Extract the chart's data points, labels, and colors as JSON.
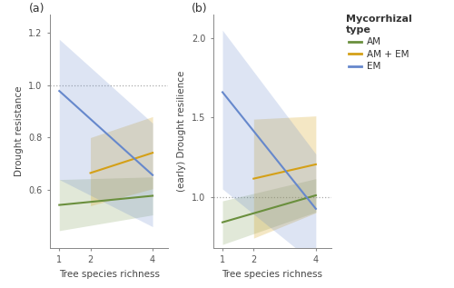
{
  "panel_a": {
    "title": "(a)",
    "xlabel": "Tree species richness",
    "ylabel": "Drought resistance",
    "xlim": [
      0.7,
      4.5
    ],
    "ylim": [
      0.38,
      1.27
    ],
    "yticks": [
      0.6,
      0.8,
      1.0,
      1.2
    ],
    "xticks": [
      1,
      2,
      4
    ],
    "hline": 1.0,
    "lines": {
      "AM": {
        "x": [
          1,
          4
        ],
        "y": [
          0.543,
          0.578
        ],
        "ci_upper": [
          0.64,
          0.65
        ],
        "ci_lower": [
          0.445,
          0.505
        ],
        "color": "#6a8f3d",
        "alpha_fill": 0.2
      },
      "AM+EM": {
        "x": [
          2,
          4
        ],
        "y": [
          0.665,
          0.742
        ],
        "ci_upper": [
          0.8,
          0.88
        ],
        "ci_lower": [
          0.54,
          0.605
        ],
        "color": "#d4a017",
        "alpha_fill": 0.25
      },
      "EM": {
        "x": [
          1,
          4
        ],
        "y": [
          0.978,
          0.657
        ],
        "ci_upper": [
          1.175,
          0.855
        ],
        "ci_lower": [
          0.64,
          0.46
        ],
        "color": "#6688cc",
        "alpha_fill": 0.22
      }
    }
  },
  "panel_b": {
    "title": "(b)",
    "xlabel": "Tree species richness",
    "ylabel": "(early) Drought resilience",
    "xlim": [
      0.7,
      4.5
    ],
    "ylim": [
      0.68,
      2.15
    ],
    "yticks": [
      1.0,
      1.5,
      2.0
    ],
    "xticks": [
      1,
      2,
      4
    ],
    "hline": 1.0,
    "lines": {
      "AM": {
        "x": [
          1,
          4
        ],
        "y": [
          0.84,
          1.01
        ],
        "ci_upper": [
          0.975,
          1.115
        ],
        "ci_lower": [
          0.7,
          0.905
        ],
        "color": "#6a8f3d",
        "alpha_fill": 0.2
      },
      "AM+EM": {
        "x": [
          2,
          4
        ],
        "y": [
          1.115,
          1.205
        ],
        "ci_upper": [
          1.49,
          1.51
        ],
        "ci_lower": [
          0.74,
          0.9
        ],
        "color": "#d4a017",
        "alpha_fill": 0.25
      },
      "EM": {
        "x": [
          1,
          4
        ],
        "y": [
          1.66,
          0.925
        ],
        "ci_upper": [
          2.05,
          1.27
        ],
        "ci_lower": [
          1.05,
          0.575
        ],
        "color": "#6688cc",
        "alpha_fill": 0.22
      }
    }
  },
  "legend": {
    "title": "Mycorrhizal\ntype",
    "entries": [
      "AM",
      "AM + EM",
      "EM"
    ],
    "colors": [
      "#6a8f3d",
      "#d4a017",
      "#6688cc"
    ]
  },
  "background_color": "#ffffff",
  "hline_color": "#aaaaaa",
  "hline_style": "dotted"
}
